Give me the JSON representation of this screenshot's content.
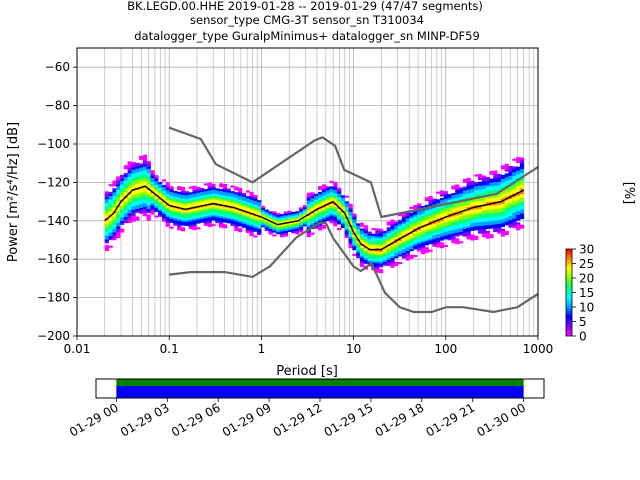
{
  "title": {
    "line1": "BK.LEGD.00.HHE   2019-01-28 -- 2019-01-29  (47/47 segments)",
    "line2": "sensor_type CMG-3T sensor_sn T310034",
    "line3": "datalogger_type GuralpMinimus+ datalogger_sn MINP-DF59"
  },
  "chart_data": {
    "type": "heatmap",
    "xscale": "log",
    "xlabel": "Period [s]",
    "ylabel": "Power [m²/s⁴/Hz] [dB]",
    "xlim": [
      0.01,
      1000
    ],
    "ylim": [
      -200,
      -50
    ],
    "xticks": [
      "0.01",
      "0.1",
      "1",
      "10",
      "100",
      "1000"
    ],
    "yticks": [
      "−200",
      "−180",
      "−160",
      "−140",
      "−120",
      "−100",
      "−80",
      "−60"
    ],
    "grid": true,
    "noise_models": {
      "high": {
        "x": [
          0.1,
          0.22,
          0.32,
          0.8,
          3.8,
          4.6,
          6.3,
          7.9,
          15.4,
          20,
          354.8,
          1000
        ],
        "y": [
          -91.5,
          -97.4,
          -110.5,
          -120,
          -98,
          -96.5,
          -101,
          -113.5,
          -120,
          -138,
          -126,
          -112
        ]
      },
      "low": {
        "x": [
          0.1,
          0.17,
          0.4,
          0.8,
          1.24,
          2.4,
          4.3,
          5,
          6,
          10,
          12,
          15.6,
          21.9,
          31.6,
          45,
          70,
          101,
          154,
          328,
          600,
          1000
        ],
        "y": [
          -168,
          -166.7,
          -166.7,
          -169.2,
          -163.7,
          -148.6,
          -141.1,
          -141.1,
          -149,
          -163.8,
          -166.2,
          -162.1,
          -177.5,
          -185,
          -187.5,
          -187.5,
          -185,
          -185,
          -187.5,
          -185,
          -178
        ]
      }
    },
    "mode_line": {
      "x": [
        0.02,
        0.025,
        0.03,
        0.04,
        0.055,
        0.07,
        0.1,
        0.15,
        0.3,
        0.5,
        1,
        1.5,
        2.5,
        4,
        6,
        8,
        10,
        12,
        15,
        20,
        30,
        50,
        100,
        200,
        400,
        700
      ],
      "y": [
        -140,
        -136,
        -130,
        -124,
        -122,
        -126,
        -132,
        -134,
        -131,
        -133,
        -138,
        -142,
        -140,
        -134,
        -130,
        -136,
        -146,
        -152,
        -155,
        -155,
        -150,
        -144,
        -138,
        -133,
        -130,
        -124
      ]
    },
    "pdf_colorbar": {
      "label": "[%]",
      "min": 0,
      "max": 30,
      "ticks": [
        "0",
        "5",
        "10",
        "15",
        "20",
        "25",
        "30"
      ],
      "colormap": [
        "#ffffff",
        "#ff00ff",
        "#8000ff",
        "#0000ff",
        "#00a0ff",
        "#00ffff",
        "#00ff80",
        "#80ff00",
        "#ffff00",
        "#ff8000",
        "#ff0000"
      ]
    },
    "coverage": {
      "ticks": [
        "01-29 00",
        "01-29 03",
        "01-29 06",
        "01-29 09",
        "01-29 12",
        "01-29 15",
        "01-29 18",
        "01-29 21",
        "01-30 00"
      ],
      "bands": [
        {
          "color": "#008000",
          "from_hour": 0,
          "to_hour": 24
        },
        {
          "color": "#0000ff",
          "from_hour": 0,
          "to_hour": 24
        }
      ],
      "range_hours": [
        -1.2,
        25.2
      ]
    }
  }
}
